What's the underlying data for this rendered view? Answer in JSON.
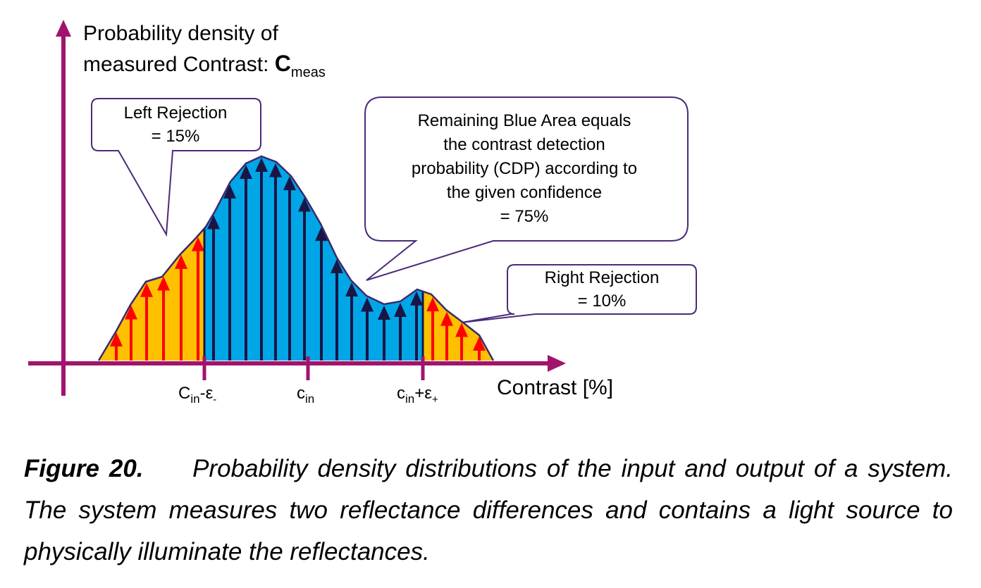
{
  "y_axis": {
    "line1": "Probability density of",
    "line2_prefix": "measured Contrast: ",
    "symbol": "C",
    "subscript": "meas"
  },
  "x_axis": {
    "label": "Contrast [%]"
  },
  "ticks": [
    {
      "base": "C",
      "sub": "in",
      "suffix": "-ε",
      "suffix_sub": "-"
    },
    {
      "base": "c",
      "sub": "in",
      "suffix": "",
      "suffix_sub": ""
    },
    {
      "base": "c",
      "sub": "in",
      "suffix": "+ε",
      "suffix_sub": "+"
    }
  ],
  "callouts": {
    "left": {
      "line1": "Left Rejection",
      "line2": "= 15%"
    },
    "center": {
      "line1": "Remaining Blue Area equals",
      "line2": "the contrast detection",
      "line3": "probability (CDP) according to",
      "line4": "the given confidence",
      "line5": "= 75%"
    },
    "right": {
      "line1": "Right Rejection",
      "line2": "= 10%"
    }
  },
  "regions": {
    "left_rejection_percent": 15,
    "cdp_percent": 75,
    "right_rejection_percent": 10
  },
  "colors": {
    "axis": "#a0146e",
    "left_fill": "#ffc000",
    "center_fill": "#00a6e6",
    "right_fill": "#ffc000",
    "red_arrow": "#ff0000",
    "dark_arrow": "#1a1547",
    "callout_border": "#4b2b7a",
    "curve": "#3a2a6e"
  },
  "caption": {
    "label": "Figure 20.",
    "text": "Probability density distributions of the input and output of a system.  The system measures two reflectance differences and contains a light source to physically illuminate the reflectances."
  }
}
